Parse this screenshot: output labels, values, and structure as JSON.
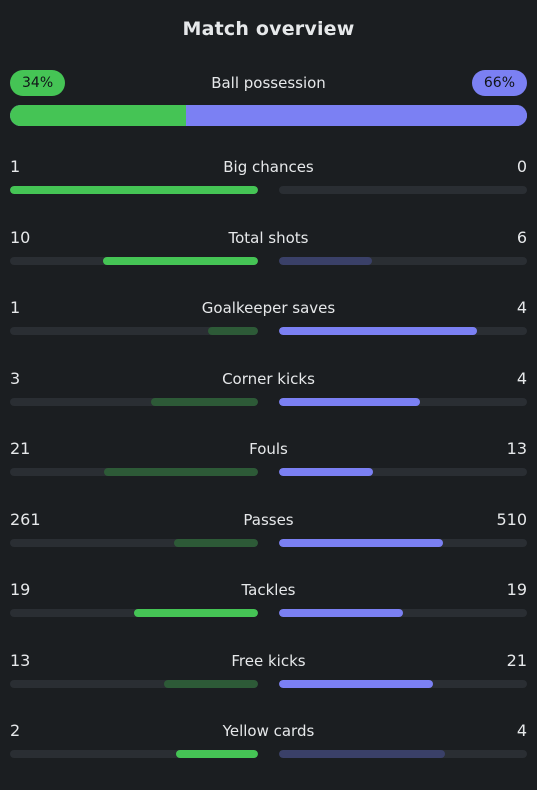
{
  "title": "Match overview",
  "colors": {
    "home_bright": "#45c455",
    "home_dim": "#2d5a37",
    "away_bright": "#7b80f3",
    "away_dim": "#3a4068",
    "track": "#2a2e33"
  },
  "possession": {
    "label": "Ball possession",
    "home_text": "34%",
    "away_text": "66%",
    "home_value": 34,
    "away_value": 66
  },
  "stats": [
    {
      "label": "Big chances",
      "home": "1",
      "away": "0",
      "home_fill": 1.0,
      "away_fill": 0.0,
      "home_bright": true,
      "away_bright": true
    },
    {
      "label": "Total shots",
      "home": "10",
      "away": "6",
      "home_fill": 0.625,
      "away_fill": 0.375,
      "home_bright": true,
      "away_bright": false
    },
    {
      "label": "Goalkeeper saves",
      "home": "1",
      "away": "4",
      "home_fill": 0.2,
      "away_fill": 0.8,
      "home_bright": false,
      "away_bright": true
    },
    {
      "label": "Corner kicks",
      "home": "3",
      "away": "4",
      "home_fill": 0.43,
      "away_fill": 0.57,
      "home_bright": false,
      "away_bright": true
    },
    {
      "label": "Fouls",
      "home": "21",
      "away": "13",
      "home_fill": 0.62,
      "away_fill": 0.38,
      "home_bright": false,
      "away_bright": true
    },
    {
      "label": "Passes",
      "home": "261",
      "away": "510",
      "home_fill": 0.34,
      "away_fill": 0.66,
      "home_bright": false,
      "away_bright": true
    },
    {
      "label": "Tackles",
      "home": "19",
      "away": "19",
      "home_fill": 0.5,
      "away_fill": 0.5,
      "home_bright": true,
      "away_bright": true
    },
    {
      "label": "Free kicks",
      "home": "13",
      "away": "21",
      "home_fill": 0.38,
      "away_fill": 0.62,
      "home_bright": false,
      "away_bright": true
    },
    {
      "label": "Yellow cards",
      "home": "2",
      "away": "4",
      "home_fill": 0.33,
      "away_fill": 0.67,
      "home_bright": true,
      "away_bright": false
    }
  ]
}
